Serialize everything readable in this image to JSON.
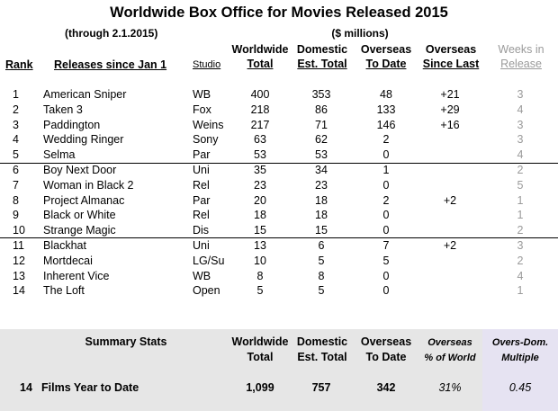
{
  "title": "Worldwide Box Office for Movies Released 2015",
  "subtitle": "(through 2.1.2015)",
  "millions_label": "($ millions)",
  "headers": {
    "rank": "Rank",
    "releases": "Releases since Jan 1",
    "studio": "Studio",
    "worldwide": [
      "Worldwide",
      "Total"
    ],
    "domestic": [
      "Domestic",
      "Est. Total"
    ],
    "overseas": [
      "Overseas",
      "To Date"
    ],
    "overseas_since": [
      "Overseas",
      "Since Last"
    ],
    "weeks": [
      "Weeks in",
      "Release"
    ]
  },
  "rows": [
    {
      "rank": "1",
      "title": "American Sniper",
      "studio": "WB",
      "worldwide": "400",
      "domestic": "353",
      "overseas": "48",
      "since_last": "+21",
      "weeks": "3"
    },
    {
      "rank": "2",
      "title": "Taken 3",
      "studio": "Fox",
      "worldwide": "218",
      "domestic": "86",
      "overseas": "133",
      "since_last": "+29",
      "weeks": "4"
    },
    {
      "rank": "3",
      "title": "Paddington",
      "studio": "Weins",
      "worldwide": "217",
      "domestic": "71",
      "overseas": "146",
      "since_last": "+16",
      "weeks": "3"
    },
    {
      "rank": "4",
      "title": "Wedding Ringer",
      "studio": "Sony",
      "worldwide": "63",
      "domestic": "62",
      "overseas": "2",
      "since_last": "",
      "weeks": "3"
    },
    {
      "rank": "5",
      "title": "Selma",
      "studio": "Par",
      "worldwide": "53",
      "domestic": "53",
      "overseas": "0",
      "since_last": "",
      "weeks": "4"
    },
    {
      "rank": "6",
      "title": "Boy Next Door",
      "studio": "Uni",
      "worldwide": "35",
      "domestic": "34",
      "overseas": "1",
      "since_last": "",
      "weeks": "2"
    },
    {
      "rank": "7",
      "title": "Woman in Black 2",
      "studio": "Rel",
      "worldwide": "23",
      "domestic": "23",
      "overseas": "0",
      "since_last": "",
      "weeks": "5"
    },
    {
      "rank": "8",
      "title": "Project Almanac",
      "studio": "Par",
      "worldwide": "20",
      "domestic": "18",
      "overseas": "2",
      "since_last": "+2",
      "weeks": "1"
    },
    {
      "rank": "9",
      "title": "Black or White",
      "studio": "Rel",
      "worldwide": "18",
      "domestic": "18",
      "overseas": "0",
      "since_last": "",
      "weeks": "1"
    },
    {
      "rank": "10",
      "title": "Strange Magic",
      "studio": "Dis",
      "worldwide": "15",
      "domestic": "15",
      "overseas": "0",
      "since_last": "",
      "weeks": "2"
    },
    {
      "rank": "11",
      "title": "Blackhat",
      "studio": "Uni",
      "worldwide": "13",
      "domestic": "6",
      "overseas": "7",
      "since_last": "+2",
      "weeks": "3"
    },
    {
      "rank": "12",
      "title": "Mortdecai",
      "studio": "LG/Su",
      "worldwide": "10",
      "domestic": "5",
      "overseas": "5",
      "since_last": "",
      "weeks": "2"
    },
    {
      "rank": "13",
      "title": "Inherent Vice",
      "studio": "WB",
      "worldwide": "8",
      "domestic": "8",
      "overseas": "0",
      "since_last": "",
      "weeks": "4"
    },
    {
      "rank": "14",
      "title": "The Loft",
      "studio": "Open",
      "worldwide": "5",
      "domestic": "5",
      "overseas": "0",
      "since_last": "",
      "weeks": "1"
    }
  ],
  "summary": {
    "label": "Summary Stats",
    "worldwide": [
      "Worldwide",
      "Total"
    ],
    "domestic": [
      "Domestic",
      "Est. Total"
    ],
    "overseas": [
      "Overseas",
      "To Date"
    ],
    "pct_world": [
      "Overseas",
      "% of World"
    ],
    "multiple": [
      "Overs-Dom.",
      "Multiple"
    ],
    "count": "14",
    "films_label": "Films Year to Date",
    "total_worldwide": "1,099",
    "total_domestic": "757",
    "total_overseas": "342",
    "pct_value": "31%",
    "multiple_value": "0.45"
  },
  "colors": {
    "summary_bg": "#e6e6e6",
    "multiple_bg": "#e6e3f2",
    "weeks_text": "#9a9a9a"
  }
}
